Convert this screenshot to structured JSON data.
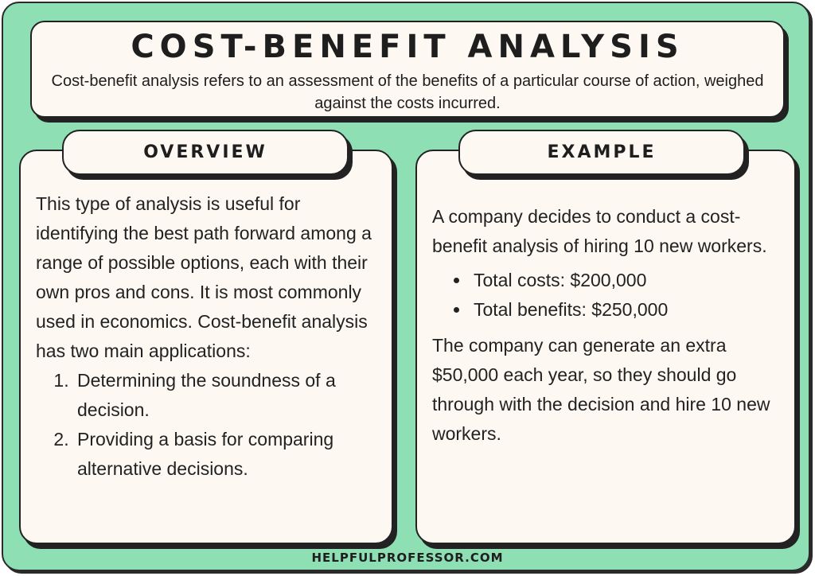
{
  "header": {
    "title": "COST-BENEFIT ANALYSIS",
    "subtitle": "Cost-benefit analysis refers to an assessment of the benefits of a particular course of action, weighed against the costs incurred."
  },
  "overview": {
    "heading": "OVERVIEW",
    "paragraph": "This type of analysis is useful for identifying the best path forward among a range of possible options, each with their own pros and cons. It is most commonly used in economics. Cost-benefit analysis has two main applications:",
    "items": [
      "Determining the soundness of a decision.",
      "Providing a basis for comparing alternative decisions."
    ]
  },
  "example": {
    "heading": "EXAMPLE",
    "intro": "A company decides to conduct a cost-benefit analysis of hiring 10 new workers.",
    "bullets": [
      "Total costs: $200,000",
      "Total benefits: $250,000"
    ],
    "conclusion": "The company can generate an extra $50,000 each year, so they should go through with the decision and hire 10 new workers."
  },
  "footer": {
    "text": "HELPFULPROFESSOR.COM"
  },
  "colors": {
    "background": "#8ee0b4",
    "card": "#fdf8f1",
    "outline": "#222222"
  }
}
